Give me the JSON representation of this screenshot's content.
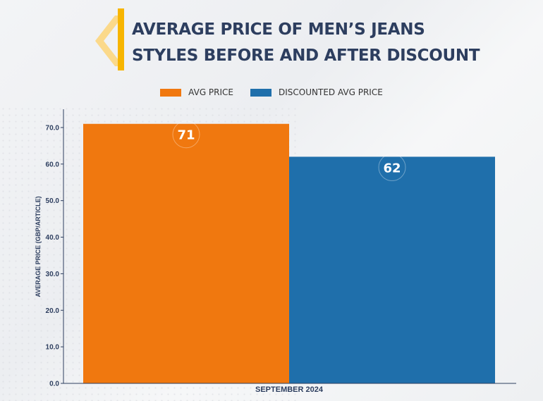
{
  "title": {
    "line1": "AVERAGE PRICE OF MEN’S JEANS",
    "line2": "STYLES BEFORE AND AFTER DISCOUNT"
  },
  "colors": {
    "title": "#2d3e5f",
    "accent": "#f7b500",
    "avg": "#f0780f",
    "discounted": "#1f6fab"
  },
  "chart_data": {
    "type": "bar",
    "categories": [
      "SEPTEMBER 2024"
    ],
    "series": [
      {
        "name": "AVG PRICE",
        "values": [
          71
        ],
        "color": "#f0780f"
      },
      {
        "name": "DISCOUNTED AVG PRICE",
        "values": [
          62
        ],
        "color": "#1f6fab"
      }
    ],
    "title": "AVERAGE PRICE OF MEN’S JEANS STYLES BEFORE AND AFTER DISCOUNT",
    "xlabel": "",
    "ylabel": "AVERAGE PRICE (GBP/ARTICLE)",
    "ylim": [
      0,
      75
    ],
    "yticks": [
      "0.0",
      "10.0",
      "20.0",
      "30.0",
      "40.0",
      "50.0",
      "60.0",
      "70.0"
    ],
    "data_labels": [
      "71",
      "62"
    ],
    "legend": "top-center",
    "grid": false
  }
}
